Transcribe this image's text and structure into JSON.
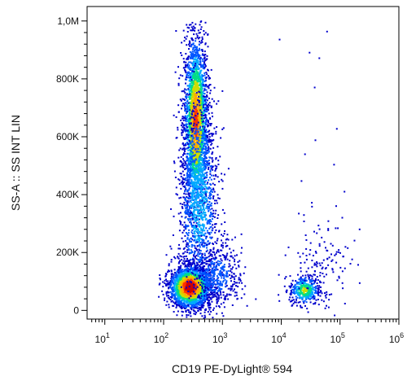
{
  "chart_data": {
    "type": "scatter",
    "xlabel": "CD19 PE-DyLight® 594",
    "ylabel": "SS-A :: SS INT LIN",
    "x_scale": "log",
    "x_range": [
      5,
      1000000
    ],
    "y_range": [
      -30000,
      1050000
    ],
    "x_ticks": [
      {
        "base": "10",
        "exp": "1",
        "value": 10
      },
      {
        "base": "10",
        "exp": "2",
        "value": 100
      },
      {
        "base": "10",
        "exp": "3",
        "value": 1000
      },
      {
        "base": "10",
        "exp": "4",
        "value": 10000
      },
      {
        "base": "10",
        "exp": "5",
        "value": 100000
      },
      {
        "base": "10",
        "exp": "6",
        "value": 1000000
      }
    ],
    "y_ticks": [
      {
        "label": "0",
        "value": 0
      },
      {
        "label": "200K",
        "value": 200000
      },
      {
        "label": "400K",
        "value": 400000
      },
      {
        "label": "600K",
        "value": 600000
      },
      {
        "label": "800K",
        "value": 800000
      },
      {
        "label": "1,0M",
        "value": 1000000
      }
    ],
    "colormap": [
      "#0000cc",
      "#0055ff",
      "#00aaff",
      "#00dd88",
      "#ccdd00",
      "#ffaa00",
      "#ff3300",
      "#cc0000"
    ],
    "populations": [
      {
        "x_log10_center": 2.55,
        "y_center": 650000,
        "x_log10_sd": 0.1,
        "y_sd": 150000,
        "count": 2600,
        "peak_density": 0.8
      },
      {
        "x_log10_center": 2.6,
        "y_center": 380000,
        "x_log10_sd": 0.17,
        "y_sd": 180000,
        "count": 1300,
        "peak_density": 0.35
      },
      {
        "x_log10_center": 2.45,
        "y_center": 80000,
        "x_log10_sd": 0.17,
        "y_sd": 35000,
        "count": 2300,
        "peak_density": 1.0
      },
      {
        "x_log10_center": 2.9,
        "y_center": 120000,
        "x_log10_sd": 0.22,
        "y_sd": 60000,
        "count": 500,
        "peak_density": 0.2
      },
      {
        "x_log10_center": 4.4,
        "y_center": 70000,
        "x_log10_sd": 0.13,
        "y_sd": 25000,
        "count": 380,
        "peak_density": 0.55
      },
      {
        "x_log10_center": 4.65,
        "y_center": 160000,
        "x_log10_sd": 0.25,
        "y_sd": 80000,
        "count": 140,
        "peak_density": 0.12
      },
      {
        "x_log10_center": 4.7,
        "y_center": 550000,
        "x_log10_sd": 0.3,
        "y_sd": 250000,
        "count": 18,
        "peak_density": 0.05
      }
    ]
  }
}
